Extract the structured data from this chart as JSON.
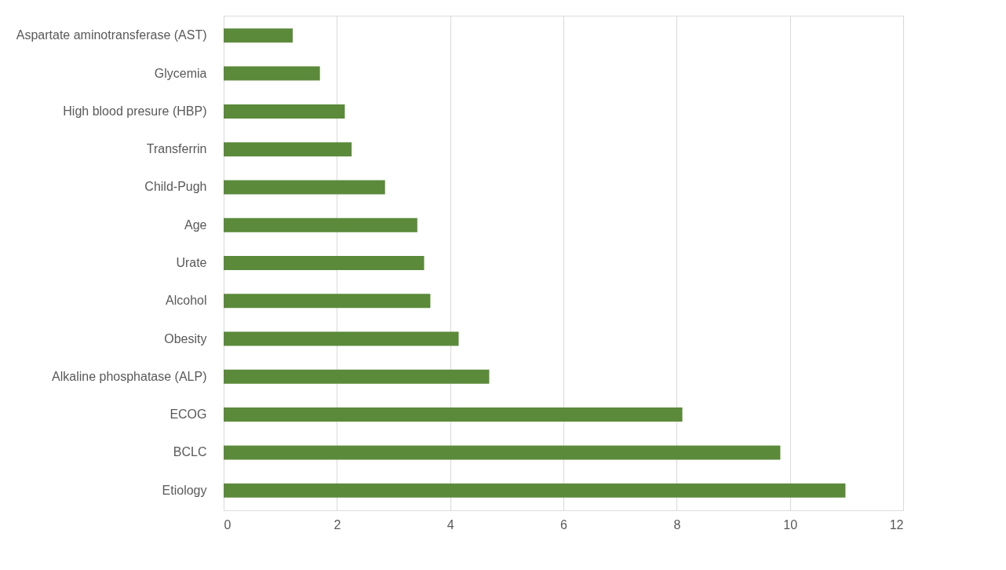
{
  "chart_data": {
    "type": "bar",
    "orientation": "horizontal",
    "categories": [
      "Aspartate aminotransferase (AST)",
      "Glycemia",
      "High blood presure (HBP)",
      "Transferrin",
      "Child-Pugh",
      "Age",
      "Urate",
      "Alcohol",
      "Obesity",
      "Alkaline phosphatase (ALP)",
      "ECOG",
      "BCLC",
      "Etiology"
    ],
    "values": [
      1.22,
      1.7,
      2.14,
      2.26,
      2.85,
      3.42,
      3.54,
      3.65,
      4.15,
      4.69,
      8.1,
      9.83,
      10.98
    ],
    "color": "#5b8a3a",
    "xlim": [
      0,
      12
    ],
    "xticks": [
      0,
      2,
      4,
      6,
      8,
      10,
      12
    ],
    "grid": "x"
  }
}
